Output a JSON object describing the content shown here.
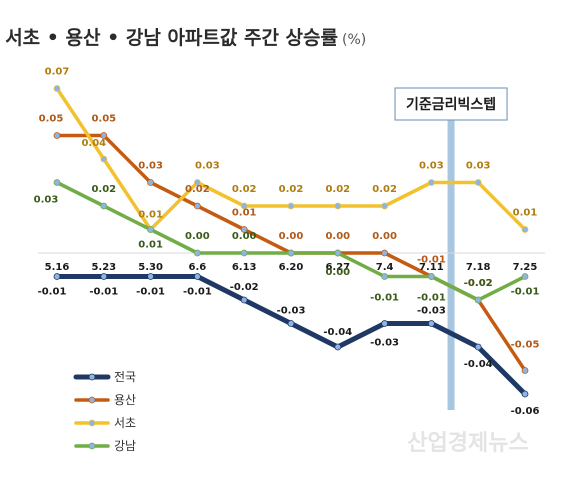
{
  "chart_data": {
    "type": "line",
    "title": "서초 • 용산 • 강남 아파트값 주간 상승률",
    "unit": "(%)",
    "categories": [
      "5.16",
      "5.23",
      "5.30",
      "6.6",
      "6.13",
      "6.20",
      "6.27",
      "7.4",
      "7.11",
      "7.18",
      "7.25"
    ],
    "series": [
      {
        "name": "전국",
        "color": "#1f3864",
        "values": [
          -0.01,
          -0.01,
          -0.01,
          -0.01,
          -0.02,
          -0.03,
          -0.04,
          -0.03,
          -0.03,
          -0.04,
          -0.06
        ],
        "labels": [
          "-0.01",
          "-0.01",
          "-0.01",
          "-0.01",
          "-0.02",
          "-0.03",
          "-0.04",
          "-0.03",
          "-0.03",
          "-0.04",
          "-0.06"
        ]
      },
      {
        "name": "용산",
        "color": "#c55a11",
        "values": [
          0.05,
          0.05,
          0.03,
          0.02,
          0.01,
          0.0,
          0.0,
          0.0,
          -0.01,
          -0.02,
          -0.05
        ],
        "labels": [
          "0.05",
          "0.05",
          "0.03",
          "0.02",
          "0.01",
          "0.00",
          "0.00",
          "0.00",
          "-0.01",
          "-0.02",
          "-0.05"
        ]
      },
      {
        "name": "서초",
        "color": "#f2c12e",
        "values": [
          0.07,
          0.04,
          0.01,
          0.03,
          0.02,
          0.02,
          0.02,
          0.02,
          0.03,
          0.03,
          0.01
        ],
        "labels": [
          "0.07",
          "0.04",
          "0.01",
          "0.03",
          "0.02",
          "0.02",
          "0.02",
          "0.02",
          "0.03",
          "0.03",
          "0.01"
        ]
      },
      {
        "name": "강남",
        "color": "#70ad47",
        "values": [
          0.03,
          0.02,
          0.01,
          0.0,
          0.0,
          0.0,
          0.0,
          -0.01,
          -0.01,
          -0.02,
          -0.01
        ],
        "labels": [
          "0.03",
          "0.02",
          "0.01",
          "0.00",
          "0.00",
          "0.00",
          "0.00",
          "-0.01",
          "-0.01",
          "-0.02",
          "-0.01"
        ]
      }
    ],
    "annotation": {
      "text": "기준금리빅스텝",
      "between": [
        "7.11",
        "7.18"
      ]
    },
    "grid": false,
    "legend": "bottom-left",
    "watermark": "산업경제뉴스"
  }
}
